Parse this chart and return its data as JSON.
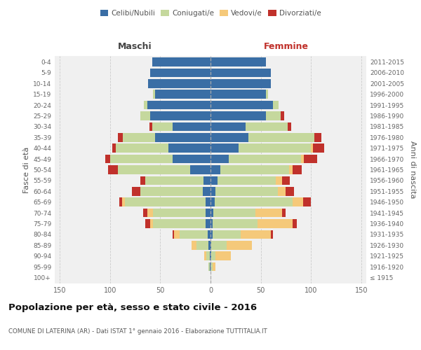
{
  "age_groups": [
    "100+",
    "95-99",
    "90-94",
    "85-89",
    "80-84",
    "75-79",
    "70-74",
    "65-69",
    "60-64",
    "55-59",
    "50-54",
    "45-49",
    "40-44",
    "35-39",
    "30-34",
    "25-29",
    "20-24",
    "15-19",
    "10-14",
    "5-9",
    "0-4"
  ],
  "birth_years": [
    "≤ 1915",
    "1916-1920",
    "1921-1925",
    "1926-1930",
    "1931-1935",
    "1936-1940",
    "1941-1945",
    "1946-1950",
    "1951-1955",
    "1956-1960",
    "1961-1965",
    "1966-1970",
    "1971-1975",
    "1976-1980",
    "1981-1985",
    "1986-1990",
    "1991-1995",
    "1996-2000",
    "2001-2005",
    "2006-2010",
    "2011-2015"
  ],
  "male": {
    "celibi": [
      0,
      1,
      1,
      2,
      3,
      5,
      5,
      5,
      8,
      7,
      20,
      38,
      42,
      55,
      38,
      60,
      63,
      55,
      62,
      60,
      58
    ],
    "coniugati": [
      0,
      1,
      3,
      12,
      28,
      52,
      52,
      80,
      62,
      58,
      72,
      62,
      52,
      32,
      20,
      10,
      3,
      2,
      0,
      0,
      0
    ],
    "vedovi": [
      0,
      0,
      2,
      5,
      5,
      3,
      6,
      3,
      0,
      0,
      0,
      0,
      0,
      0,
      0,
      0,
      0,
      0,
      0,
      0,
      0
    ],
    "divorziati": [
      0,
      0,
      0,
      0,
      2,
      5,
      4,
      3,
      8,
      5,
      10,
      5,
      4,
      5,
      3,
      0,
      0,
      0,
      0,
      0,
      0
    ]
  },
  "female": {
    "nubili": [
      0,
      0,
      1,
      1,
      2,
      2,
      3,
      4,
      5,
      7,
      10,
      18,
      28,
      38,
      35,
      55,
      62,
      55,
      60,
      60,
      55
    ],
    "coniugate": [
      0,
      2,
      4,
      15,
      28,
      45,
      42,
      78,
      62,
      58,
      68,
      72,
      72,
      65,
      42,
      15,
      6,
      2,
      0,
      0,
      0
    ],
    "vedove": [
      0,
      3,
      15,
      25,
      30,
      35,
      26,
      10,
      8,
      6,
      4,
      3,
      2,
      0,
      0,
      0,
      0,
      0,
      0,
      0,
      0
    ],
    "divorziate": [
      0,
      0,
      0,
      0,
      2,
      4,
      4,
      8,
      8,
      8,
      9,
      13,
      11,
      7,
      3,
      3,
      0,
      0,
      0,
      0,
      0
    ]
  },
  "colors": {
    "celibi": "#3a6ea5",
    "coniugati": "#c5d89d",
    "vedovi": "#f5c97a",
    "divorziati": "#c0312b"
  },
  "xlim": 155,
  "title": "Popolazione per età, sesso e stato civile - 2016",
  "subtitle": "COMUNE DI LATERINA (AR) - Dati ISTAT 1° gennaio 2016 - Elaborazione TUTTITALIA.IT",
  "ylabel_left": "Fasce di età",
  "ylabel_right": "Anni di nascita",
  "xlabel_maschi": "Maschi",
  "xlabel_femmine": "Femmine",
  "legend_labels": [
    "Celibi/Nubili",
    "Coniugati/e",
    "Vedovi/e",
    "Divorziati/e"
  ],
  "bg_color": "#f0f0f0",
  "fig_bg": "#ffffff"
}
